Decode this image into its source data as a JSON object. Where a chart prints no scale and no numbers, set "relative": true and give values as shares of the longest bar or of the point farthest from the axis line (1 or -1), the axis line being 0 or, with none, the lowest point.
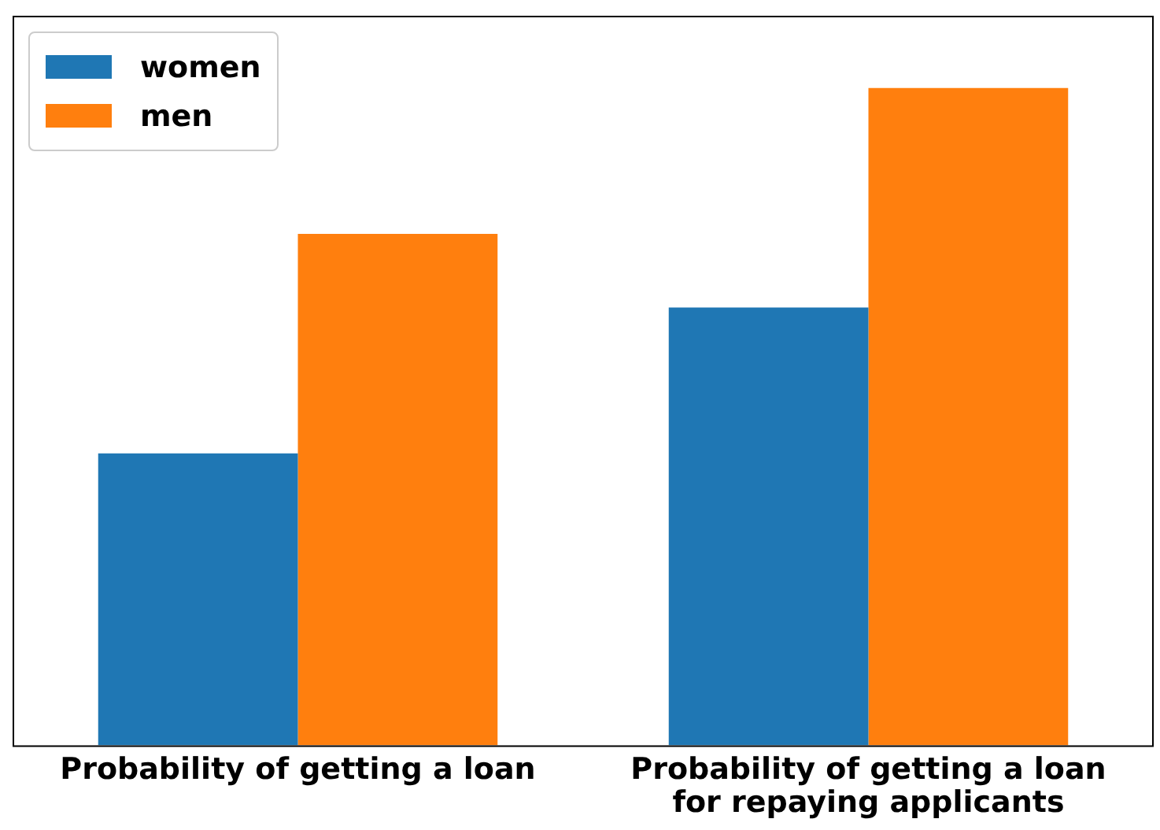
{
  "chart_data": {
    "type": "bar",
    "relative": true,
    "categories": [
      "Probability of getting a loan",
      "Probability of getting a loan\nfor repaying applicants"
    ],
    "series": [
      {
        "name": "women",
        "color": "#1f77b4",
        "values": [
          0.444,
          0.666
        ]
      },
      {
        "name": "men",
        "color": "#ff7f0e",
        "values": [
          0.778,
          1
        ]
      }
    ],
    "legend": "top left",
    "grid": false,
    "tick_labels": "x"
  }
}
